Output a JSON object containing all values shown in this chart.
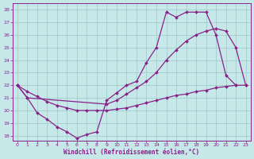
{
  "xlabel": "Windchill (Refroidissement éolien,°C)",
  "xlim": [
    -0.5,
    23.5
  ],
  "ylim": [
    17.6,
    28.5
  ],
  "xticks": [
    0,
    1,
    2,
    3,
    4,
    5,
    6,
    7,
    8,
    9,
    10,
    11,
    12,
    13,
    14,
    15,
    16,
    17,
    18,
    19,
    20,
    21,
    22,
    23
  ],
  "yticks": [
    18,
    19,
    20,
    21,
    22,
    23,
    24,
    25,
    26,
    27,
    28
  ],
  "bg_color": "#c6e8e8",
  "grid_color": "#9ec8c8",
  "line_color": "#882288",
  "line1_x": [
    0,
    1,
    2,
    3,
    4,
    5,
    6,
    7,
    8,
    9,
    10,
    11,
    12,
    13,
    14,
    15,
    16,
    17,
    18,
    19,
    20,
    21,
    22
  ],
  "line1_y": [
    22.0,
    21.0,
    19.8,
    19.3,
    18.7,
    18.3,
    17.8,
    18.1,
    18.3,
    20.8,
    21.4,
    22.0,
    22.3,
    23.8,
    25.0,
    27.8,
    27.4,
    27.8,
    27.8,
    27.8,
    26.0,
    22.8,
    22.0
  ],
  "line2_x": [
    0,
    1,
    2,
    3,
    4,
    5,
    6,
    7,
    8,
    9,
    10,
    11,
    12,
    13,
    14,
    15,
    16,
    17,
    18,
    19,
    20,
    21,
    22,
    23
  ],
  "line2_y": [
    22.0,
    21.5,
    21.1,
    20.7,
    20.4,
    20.2,
    20.0,
    20.0,
    20.0,
    20.0,
    20.1,
    20.2,
    20.4,
    20.6,
    20.8,
    21.0,
    21.2,
    21.3,
    21.5,
    21.6,
    21.8,
    21.9,
    22.0,
    22.0
  ],
  "line3_x": [
    0,
    1,
    9,
    10,
    11,
    12,
    13,
    14,
    15,
    16,
    17,
    18,
    19,
    20,
    21,
    22,
    23
  ],
  "line3_y": [
    22.0,
    21.0,
    20.5,
    20.8,
    21.3,
    21.8,
    22.3,
    23.0,
    24.0,
    24.8,
    25.5,
    26.0,
    26.3,
    26.5,
    26.3,
    25.0,
    22.0
  ]
}
